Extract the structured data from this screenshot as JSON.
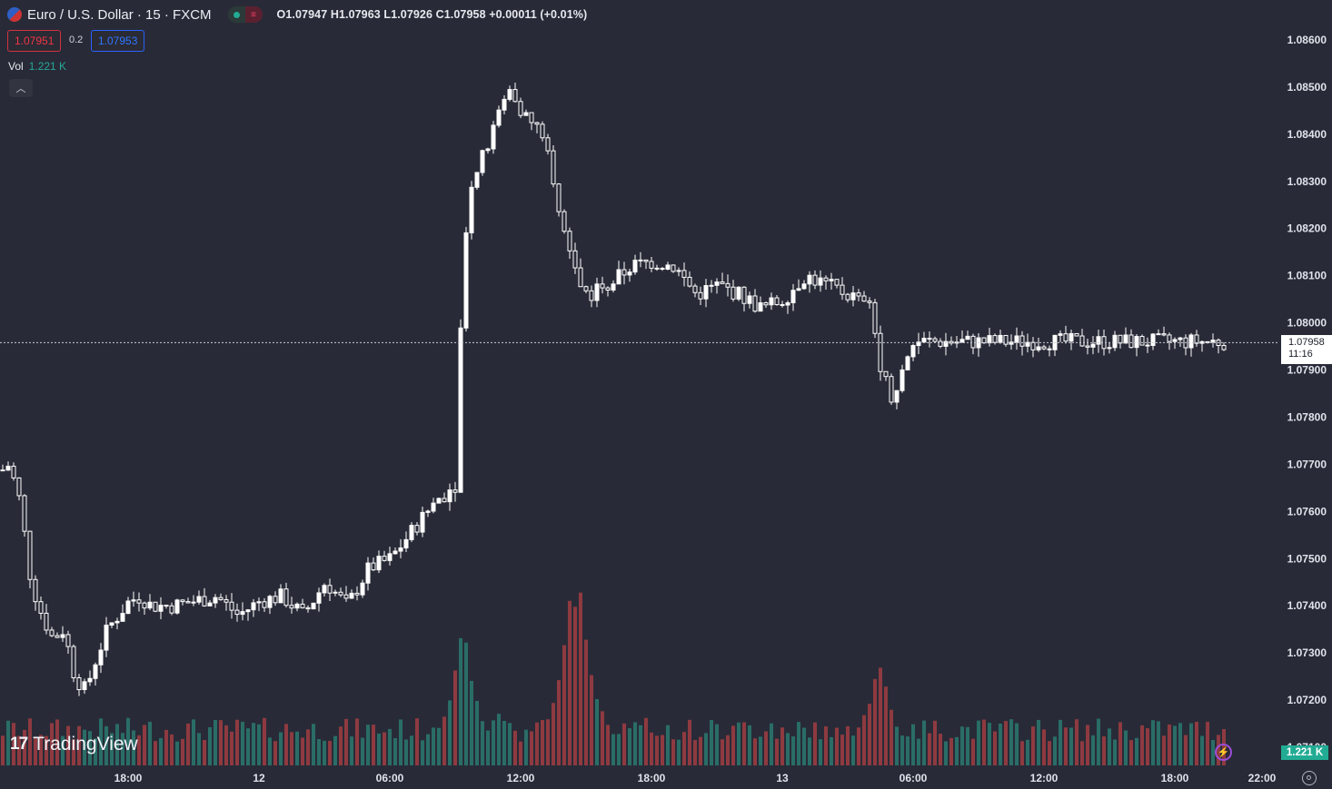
{
  "header": {
    "symbol_title": "Euro / U.S. Dollar · 15 · FXCM",
    "ohlc": "O1.07947 H1.07963 L1.07926 C1.07958 +0.00011 (+0.01%)",
    "bid": "1.07951",
    "spread": "0.2",
    "ask": "1.07953",
    "vol_label": "Vol",
    "vol_value": "1.221 K",
    "collapse_icon": "chevron-up-icon"
  },
  "brand": {
    "name": "TradingView"
  },
  "price_axis": {
    "labels": [
      "1.08600",
      "1.08500",
      "1.08400",
      "1.08300",
      "1.08200",
      "1.08100",
      "1.08000",
      "1.07900",
      "1.07800",
      "1.07700",
      "1.07600",
      "1.07500",
      "1.07400",
      "1.07300",
      "1.07200",
      "1.07100"
    ],
    "current_price": "1.07958",
    "countdown": "11:16",
    "volume_badge": "1.221 K"
  },
  "time_axis": {
    "labels": [
      "18:00",
      "12",
      "06:00",
      "12:00",
      "18:00",
      "13",
      "06:00",
      "12:00",
      "18:00",
      "22:00"
    ]
  },
  "colors": {
    "background": "#282b37",
    "up": "#ffffff",
    "vol_up": "#2a6d67",
    "vol_down": "#8e3a40",
    "accent": "#22ab94"
  },
  "chart_data": {
    "type": "candlestick",
    "interval": "15",
    "price_range": [
      1.0709,
      1.0865
    ],
    "current_price": 1.07958,
    "price_path": [
      [
        17.0,
        1.0768
      ],
      [
        17.5,
        1.077
      ],
      [
        18.0,
        1.0762
      ],
      [
        18.5,
        1.0745
      ],
      [
        19.0,
        1.0738
      ],
      [
        19.5,
        1.0733
      ],
      [
        20.0,
        1.0735
      ],
      [
        20.5,
        1.0725
      ],
      [
        21.0,
        1.0722
      ],
      [
        21.5,
        1.0729
      ],
      [
        22.0,
        1.0735
      ],
      [
        22.5,
        1.0738
      ],
      [
        23.0,
        1.0741
      ],
      [
        23.5,
        1.0742
      ],
      [
        24.0,
        1.074
      ],
      [
        25.0,
        1.074
      ],
      [
        26.0,
        1.0741
      ],
      [
        27.0,
        1.0742
      ],
      [
        28.0,
        1.0738
      ],
      [
        29.0,
        1.0741
      ],
      [
        30.0,
        1.0742
      ],
      [
        31.0,
        1.0738
      ],
      [
        32.0,
        1.0745
      ],
      [
        33.0,
        1.074
      ],
      [
        34.0,
        1.0748
      ],
      [
        35.0,
        1.075
      ],
      [
        36.0,
        1.0756
      ],
      [
        37.0,
        1.0762
      ],
      [
        38.0,
        1.0766
      ],
      [
        38.3,
        1.0815
      ],
      [
        38.7,
        1.083
      ],
      [
        39.5,
        1.0838
      ],
      [
        40.0,
        1.0845
      ],
      [
        40.5,
        1.085
      ],
      [
        41.0,
        1.0845
      ],
      [
        41.5,
        1.0842
      ],
      [
        42.0,
        1.084
      ],
      [
        42.5,
        1.0828
      ],
      [
        43.0,
        1.0818
      ],
      [
        43.5,
        1.081
      ],
      [
        44.0,
        1.0806
      ],
      [
        45.0,
        1.0808
      ],
      [
        46.0,
        1.0812
      ],
      [
        47.0,
        1.0813
      ],
      [
        48.0,
        1.0812
      ],
      [
        49.0,
        1.0806
      ],
      [
        50.0,
        1.0808
      ],
      [
        51.0,
        1.0806
      ],
      [
        52.0,
        1.0803
      ],
      [
        53.0,
        1.0805
      ],
      [
        54.0,
        1.081
      ],
      [
        55.0,
        1.0808
      ],
      [
        56.0,
        1.0806
      ],
      [
        57.0,
        1.0803
      ],
      [
        57.5,
        1.079
      ],
      [
        58.0,
        1.0784
      ],
      [
        58.5,
        1.079
      ],
      [
        59.0,
        1.0796
      ],
      [
        59.5,
        1.0796
      ]
    ],
    "volume_peak_k": [
      [
        38.3,
        1.45
      ],
      [
        40.0,
        0.55
      ],
      [
        43.3,
        1.95
      ],
      [
        43.6,
        2.0
      ],
      [
        57.4,
        1.08
      ],
      [
        57.6,
        0.6
      ]
    ]
  }
}
